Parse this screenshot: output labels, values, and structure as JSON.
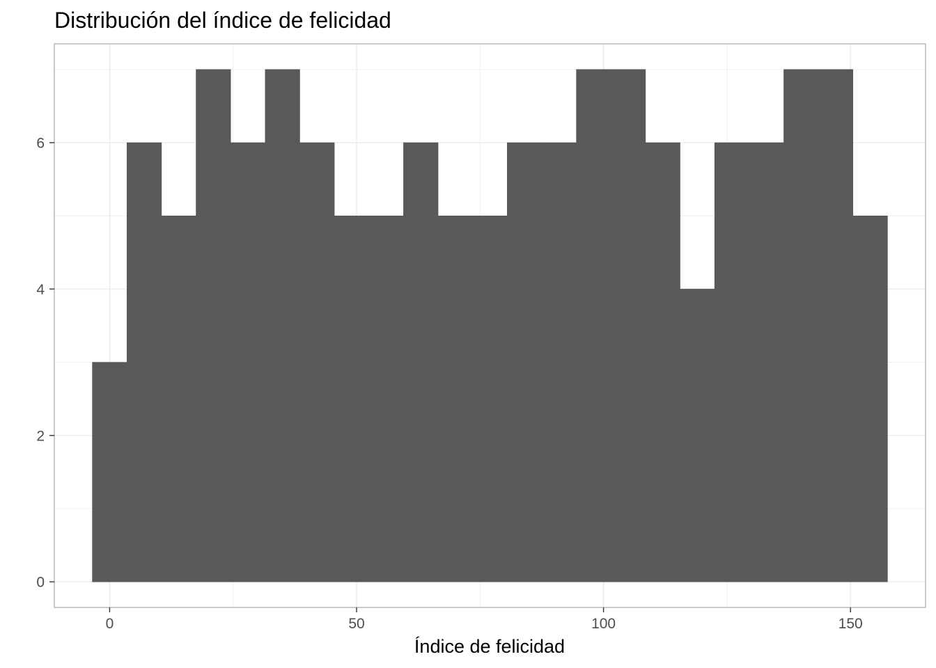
{
  "chart_data": {
    "type": "bar",
    "title": "Distribución del índice de felicidad",
    "xlabel": "Índice de felicidad",
    "ylabel": "",
    "bin_width": 7,
    "x": [
      0,
      7,
      14,
      21,
      28,
      35,
      42,
      49,
      56,
      63,
      70,
      77,
      84,
      91,
      98,
      105,
      112,
      119,
      126,
      133,
      140,
      147,
      154
    ],
    "values": [
      3,
      6,
      5,
      7,
      6,
      7,
      6,
      5,
      5,
      6,
      5,
      5,
      6,
      6,
      7,
      7,
      6,
      4,
      6,
      6,
      7,
      7,
      5
    ],
    "xlim": [
      -11.2,
      165.2
    ],
    "ylim": [
      -0.35,
      7.35
    ],
    "x_ticks": [
      0,
      50,
      100,
      150
    ],
    "x_tick_labels": [
      "0",
      "50",
      "100",
      "150"
    ],
    "y_ticks": [
      0,
      2,
      4,
      6
    ],
    "y_tick_labels": [
      "0",
      "2",
      "4",
      "6"
    ],
    "grid": true,
    "bar_color": "#595959",
    "grid_color": "#ebebeb",
    "border_color": "#b3b3b3"
  }
}
